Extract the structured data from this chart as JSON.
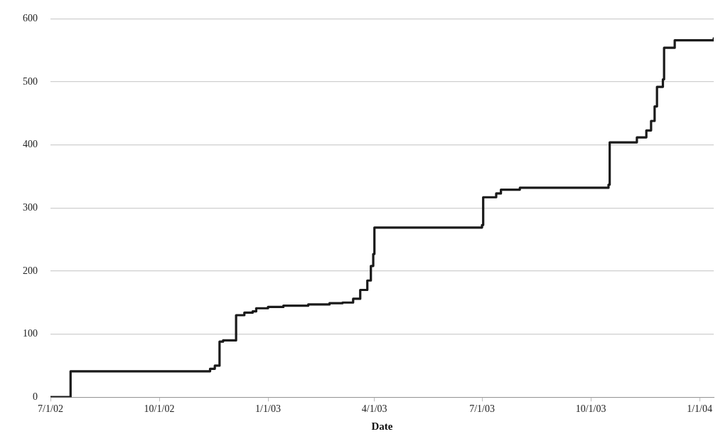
{
  "chart_data": {
    "type": "step",
    "xlabel": "Date",
    "x": [
      "2002-07-01",
      "2002-07-18",
      "2002-11-08",
      "2002-11-13",
      "2002-11-17",
      "2002-11-21",
      "2002-11-24",
      "2002-12-05",
      "2002-12-12",
      "2002-12-19",
      "2002-12-22",
      "2003-01-01",
      "2003-01-14",
      "2003-02-04",
      "2003-02-22",
      "2003-03-05",
      "2003-03-14",
      "2003-03-20",
      "2003-03-26",
      "2003-03-29",
      "2003-03-31",
      "2003-04-01",
      "2003-07-01",
      "2003-07-02",
      "2003-07-13",
      "2003-07-17",
      "2003-08-02",
      "2003-09-06",
      "2003-10-16",
      "2003-10-17",
      "2003-10-30",
      "2003-11-09",
      "2003-11-17",
      "2003-11-21",
      "2003-11-24",
      "2003-11-26",
      "2003-12-01",
      "2003-12-02",
      "2003-12-11",
      "2004-01-13"
    ],
    "series": [
      {
        "color": "#1a1a1a",
        "values": [
          0,
          41,
          41,
          45,
          50,
          88,
          90,
          130,
          134,
          136,
          141,
          143,
          145,
          147,
          149,
          150,
          156,
          170,
          185,
          208,
          227,
          269,
          273,
          317,
          323,
          329,
          332,
          332,
          337,
          404,
          404,
          412,
          423,
          438,
          461,
          492,
          504,
          554,
          566,
          569
        ]
      }
    ],
    "xlim": [
      "2002-07-01",
      "2004-01-13"
    ],
    "xticks": [
      {
        "value": "2002-07-01",
        "label": "7/1/02"
      },
      {
        "value": "2002-10-01",
        "label": "10/1/02"
      },
      {
        "value": "2003-01-01",
        "label": "1/1/03"
      },
      {
        "value": "2003-04-01",
        "label": "4/1/03"
      },
      {
        "value": "2003-07-01",
        "label": "7/1/03"
      },
      {
        "value": "2003-10-01",
        "label": "10/1/03"
      },
      {
        "value": "2004-01-01",
        "label": "1/1/04"
      }
    ],
    "ylim": [
      0,
      600
    ],
    "yticks": [
      0,
      100,
      200,
      300,
      400,
      500,
      600
    ],
    "grid": "y",
    "legend": false,
    "marker": "none",
    "line_style": "solid"
  }
}
